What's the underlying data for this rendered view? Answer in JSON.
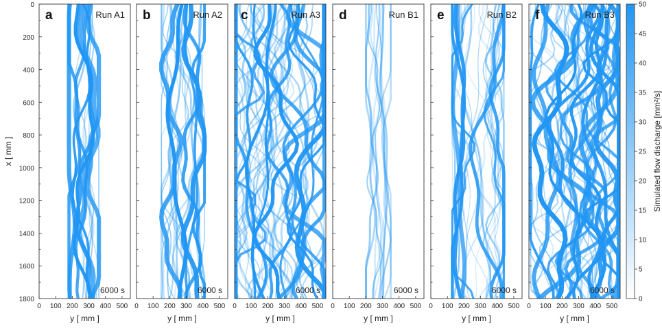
{
  "chart_data": {
    "type": "heatmap",
    "colorbar": {
      "label": "Simulated flow discharge [mm²/s]",
      "min": 0,
      "max": 50,
      "ticks": [
        0,
        5,
        10,
        15,
        20,
        25,
        30,
        35,
        40,
        45,
        50
      ],
      "color_low": "#ffffff",
      "color_high": "#2196F3"
    },
    "shared_y_axis": {
      "label": "x [ mm ]",
      "range": [
        0,
        1800
      ],
      "ticks": [
        0,
        200,
        400,
        600,
        800,
        1000,
        1200,
        1400,
        1600,
        1800
      ]
    },
    "panels": [
      {
        "letter": "a",
        "title": "Run A1",
        "time": "6000 s",
        "xlabel": "y [ mm ]",
        "xrange": [
          0,
          550
        ],
        "xticks": [
          0,
          100,
          200,
          300,
          400,
          500
        ],
        "channel_band": [
          180,
          360
        ]
      },
      {
        "letter": "b",
        "title": "Run A2",
        "time": "6000 s",
        "xlabel": "y [ mm ]",
        "xrange": [
          0,
          550
        ],
        "xticks": [
          0,
          100,
          200,
          300,
          400,
          500
        ],
        "channel_band": [
          150,
          410
        ]
      },
      {
        "letter": "c",
        "title": "Run A3",
        "time": "6000 s",
        "xlabel": "y [ mm ]",
        "xrange": [
          0,
          550
        ],
        "xticks": [
          0,
          100,
          200,
          300,
          400,
          500
        ],
        "channel_band": [
          10,
          540
        ]
      },
      {
        "letter": "d",
        "title": "Run B1",
        "time": "6000 s",
        "xlabel": "y [ mm ]",
        "xrange": [
          0,
          550
        ],
        "xticks": [
          0,
          100,
          200,
          300,
          400,
          500
        ],
        "channel_band": [
          200,
          350
        ]
      },
      {
        "letter": "e",
        "title": "Run B2",
        "time": "6000 s",
        "xlabel": "y [ mm ]",
        "xrange": [
          0,
          550
        ],
        "xticks": [
          0,
          100,
          200,
          300,
          400,
          500
        ],
        "channel_band": [
          130,
          440
        ]
      },
      {
        "letter": "f",
        "title": "Run B3",
        "time": "6000 s",
        "xlabel": "y [ mm ]",
        "xrange": [
          0,
          550
        ],
        "xticks": [
          0,
          100,
          200,
          300,
          400,
          500
        ],
        "channel_band": [
          10,
          540
        ]
      }
    ]
  }
}
